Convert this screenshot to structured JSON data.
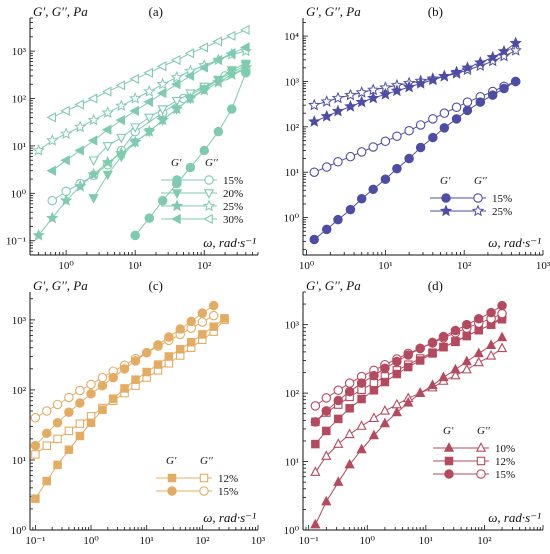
{
  "chart_data": [
    {
      "type": "scatter",
      "panel_label": "(a)",
      "ylabel": "G′, G′′, Pa",
      "xlabel": "ω, rad·s⁻¹",
      "xscale": "log",
      "yscale": "log",
      "xlim": [
        0.3,
        600
      ],
      "ylim": [
        0.05,
        5000
      ],
      "xticks": [
        1,
        10,
        100
      ],
      "xtick_labels": [
        "10⁰",
        "10¹",
        "10²"
      ],
      "yticks": [
        0.1,
        1,
        10,
        100,
        1000
      ],
      "ytick_labels": [
        "10⁻¹",
        "10⁰",
        "10¹",
        "10²",
        "10³"
      ],
      "grid": false,
      "legend_position": "bottom-right",
      "legend_header": [
        "G′",
        "G′′"
      ],
      "color": "#7fcbb0",
      "series": [
        {
          "label": "15%",
          "marker": "circle",
          "x": [
            10,
            16,
            25,
            40,
            63,
            100,
            160,
            250,
            400
          ],
          "gp": [
            0.13,
            0.3,
            0.7,
            1.6,
            3.5,
            8,
            20,
            60,
            350
          ],
          "gpp": [
            0.7,
            1.1,
            1.6,
            2.4,
            4,
            8,
            20,
            50,
            100,
            170,
            300,
            400
          ],
          "x2": [
            0.63,
            1,
            1.6,
            2.5,
            4,
            6.3,
            10,
            25,
            50,
            100,
            200,
            400
          ]
        },
        {
          "label": "20%",
          "marker": "triangle-down",
          "x": [
            2.5,
            4,
            6.3,
            10,
            16,
            25,
            40,
            63,
            100,
            160,
            250,
            400
          ],
          "gp": [
            0.8,
            2.5,
            6,
            12,
            20,
            35,
            60,
            100,
            160,
            250,
            400,
            550
          ],
          "gpp": [
            5,
            10,
            15,
            25,
            40,
            60,
            90,
            130,
            180,
            250,
            350,
            500
          ]
        },
        {
          "label": "25%",
          "marker": "star",
          "x": [
            0.4,
            0.63,
            1,
            1.6,
            2.5,
            4,
            6.3,
            10,
            16,
            25,
            40,
            63,
            100,
            160,
            250,
            400
          ],
          "gp": [
            0.13,
            0.3,
            0.7,
            1.4,
            2.5,
            4.5,
            7,
            12,
            20,
            35,
            60,
            100,
            150,
            220,
            320,
            450
          ],
          "gpp": [
            8,
            13,
            18,
            25,
            35,
            50,
            70,
            100,
            140,
            200,
            280,
            380,
            500,
            650,
            850,
            1000
          ]
        },
        {
          "label": "30%",
          "marker": "triangle-left",
          "x": [
            0.63,
            1,
            1.6,
            2.5,
            4,
            6.3,
            10,
            16,
            25,
            40,
            63,
            100,
            160,
            250,
            400
          ],
          "gp": [
            3,
            5,
            8,
            13,
            22,
            35,
            55,
            85,
            130,
            200,
            300,
            450,
            650,
            900,
            1200
          ],
          "gpp": [
            40,
            55,
            75,
            100,
            140,
            190,
            260,
            350,
            480,
            650,
            900,
            1200,
            1600,
            2100,
            2800
          ]
        }
      ]
    },
    {
      "type": "scatter",
      "panel_label": "(b)",
      "ylabel": "G′, G′′, Pa",
      "xlabel": "ω, rad·s⁻¹",
      "xscale": "log",
      "yscale": "log",
      "xlim": [
        0.9,
        1000
      ],
      "ylim": [
        0.15,
        25000
      ],
      "xticks": [
        1,
        10,
        100,
        1000
      ],
      "xtick_labels": [
        "10⁰",
        "10¹",
        "10²",
        "10³"
      ],
      "yticks": [
        1,
        10,
        100,
        1000,
        10000
      ],
      "ytick_labels": [
        "10⁰",
        "10¹",
        "10²",
        "10³",
        "10⁴"
      ],
      "grid": false,
      "legend_position": "bottom-right",
      "legend_header": [
        "G′",
        "G′′"
      ],
      "color": "#4e4da6",
      "series": [
        {
          "label": "15%",
          "marker": "circle",
          "x": [
            1.25,
            1.8,
            2.5,
            3.6,
            5,
            7,
            10,
            14,
            20,
            28,
            40,
            56,
            80,
            110,
            160,
            230,
            320,
            450
          ],
          "gp": [
            0.33,
            0.55,
            0.9,
            1.5,
            2.6,
            4.2,
            7,
            12,
            20,
            35,
            58,
            95,
            150,
            230,
            350,
            500,
            700,
            1000
          ],
          "gpp": [
            10,
            13,
            17,
            22,
            28,
            36,
            48,
            62,
            82,
            110,
            150,
            200,
            270,
            350,
            460,
            600,
            780,
            1000
          ]
        },
        {
          "label": "25%",
          "marker": "star",
          "x": [
            1.25,
            1.8,
            2.5,
            3.6,
            5,
            7,
            10,
            14,
            20,
            28,
            40,
            56,
            80,
            110,
            160,
            230,
            320,
            450
          ],
          "gp": [
            130,
            170,
            220,
            280,
            350,
            430,
            520,
            620,
            750,
            900,
            1080,
            1300,
            1600,
            2000,
            2600,
            3400,
            4600,
            7000
          ],
          "gpp": [
            300,
            360,
            430,
            500,
            570,
            650,
            730,
            820,
            920,
            1020,
            1150,
            1300,
            1500,
            1800,
            2200,
            2800,
            3600,
            4800
          ]
        }
      ]
    },
    {
      "type": "scatter",
      "panel_label": "(c)",
      "ylabel": "G′, G′′, Pa",
      "xlabel": "ω, rad·s⁻¹",
      "xscale": "log",
      "yscale": "log",
      "xlim": [
        0.08,
        1000
      ],
      "ylim": [
        1,
        2500
      ],
      "xticks": [
        0.1,
        1,
        10,
        100,
        1000
      ],
      "xtick_labels": [
        "10⁻¹",
        "10⁰",
        "10¹",
        "10²",
        "10³"
      ],
      "yticks": [
        1,
        10,
        100,
        1000
      ],
      "ytick_labels": [
        "10⁰",
        "10¹",
        "10²",
        "10³"
      ],
      "grid": false,
      "legend_position": "bottom-right",
      "legend_header": [
        "G′",
        "G′′"
      ],
      "color": "#e4ac63",
      "series": [
        {
          "label": "12%",
          "marker": "square",
          "x": [
            0.1,
            0.16,
            0.25,
            0.4,
            0.63,
            1,
            1.6,
            2.5,
            4,
            6.3,
            10,
            16,
            25,
            40,
            63,
            100,
            160,
            250
          ],
          "gp": [
            2.8,
            5,
            8.5,
            14,
            22,
            34,
            52,
            75,
            105,
            140,
            180,
            230,
            300,
            380,
            480,
            620,
            800,
            1050
          ],
          "gpp": [
            12,
            16,
            20,
            26,
            33,
            42,
            55,
            70,
            90,
            115,
            150,
            190,
            240,
            310,
            400,
            520,
            680,
            1000
          ]
        },
        {
          "label": "15%",
          "marker": "circle",
          "x": [
            0.1,
            0.16,
            0.25,
            0.4,
            0.63,
            1,
            1.6,
            2.5,
            4,
            6.3,
            10,
            16,
            25,
            40,
            63,
            100,
            160
          ],
          "gp": [
            16,
            24,
            34,
            48,
            65,
            88,
            115,
            150,
            200,
            260,
            340,
            440,
            570,
            740,
            950,
            1250,
            1600
          ],
          "gpp": [
            40,
            50,
            62,
            78,
            98,
            120,
            150,
            185,
            225,
            280,
            340,
            420,
            510,
            620,
            760,
            930,
            1150
          ]
        }
      ]
    },
    {
      "type": "scatter",
      "panel_label": "(d)",
      "ylabel": "G′, G′′, Pa",
      "xlabel": "ω, rad·s⁻¹",
      "xscale": "log",
      "yscale": "log",
      "xlim": [
        0.08,
        1000
      ],
      "ylim": [
        1,
        3000
      ],
      "xticks": [
        0.1,
        1,
        10,
        100
      ],
      "xtick_labels": [
        "10⁻¹",
        "10⁰",
        "10¹",
        "10²"
      ],
      "yticks": [
        1,
        10,
        100,
        1000
      ],
      "ytick_labels": [
        "10⁰",
        "10¹",
        "10²",
        "10³"
      ],
      "grid": false,
      "legend_position": "bottom-right",
      "legend_header": [
        "G′",
        "G′′"
      ],
      "color": "#b54a5f",
      "series": [
        {
          "label": "10%",
          "marker": "triangle-up",
          "x": [
            0.13,
            0.2,
            0.32,
            0.5,
            0.8,
            1.3,
            2,
            3.2,
            5,
            8,
            13,
            20,
            32,
            50,
            80,
            130,
            200
          ],
          "gp": [
            1.2,
            2.6,
            5,
            9,
            15,
            24,
            36,
            52,
            72,
            100,
            130,
            170,
            220,
            290,
            380,
            500,
            650
          ],
          "gpp": [
            7,
            12,
            18,
            25,
            33,
            43,
            55,
            68,
            84,
            100,
            120,
            150,
            180,
            220,
            280,
            350,
            450
          ]
        },
        {
          "label": "12%",
          "marker": "square",
          "x": [
            0.13,
            0.2,
            0.32,
            0.5,
            0.8,
            1.3,
            2,
            3.2,
            5,
            8,
            13,
            20,
            32,
            50,
            80,
            130,
            200
          ],
          "gp": [
            18,
            28,
            42,
            60,
            82,
            110,
            145,
            190,
            240,
            300,
            380,
            470,
            570,
            690,
            830,
            1000,
            1200
          ],
          "gpp": [
            38,
            52,
            68,
            88,
            112,
            140,
            175,
            215,
            260,
            320,
            390,
            470,
            560,
            680,
            830,
            1000,
            1300
          ]
        },
        {
          "label": "15%",
          "marker": "circle",
          "x": [
            0.13,
            0.2,
            0.32,
            0.5,
            0.8,
            1.3,
            2,
            3.2,
            5,
            8,
            13,
            20,
            32,
            50,
            80,
            130,
            200
          ],
          "gp": [
            38,
            55,
            78,
            105,
            140,
            180,
            230,
            290,
            360,
            450,
            550,
            670,
            820,
            1000,
            1220,
            1500,
            1900
          ],
          "gpp": [
            65,
            85,
            110,
            140,
            175,
            215,
            260,
            315,
            380,
            450,
            540,
            640,
            760,
            890,
            1050,
            1220,
            1450
          ]
        }
      ]
    }
  ]
}
